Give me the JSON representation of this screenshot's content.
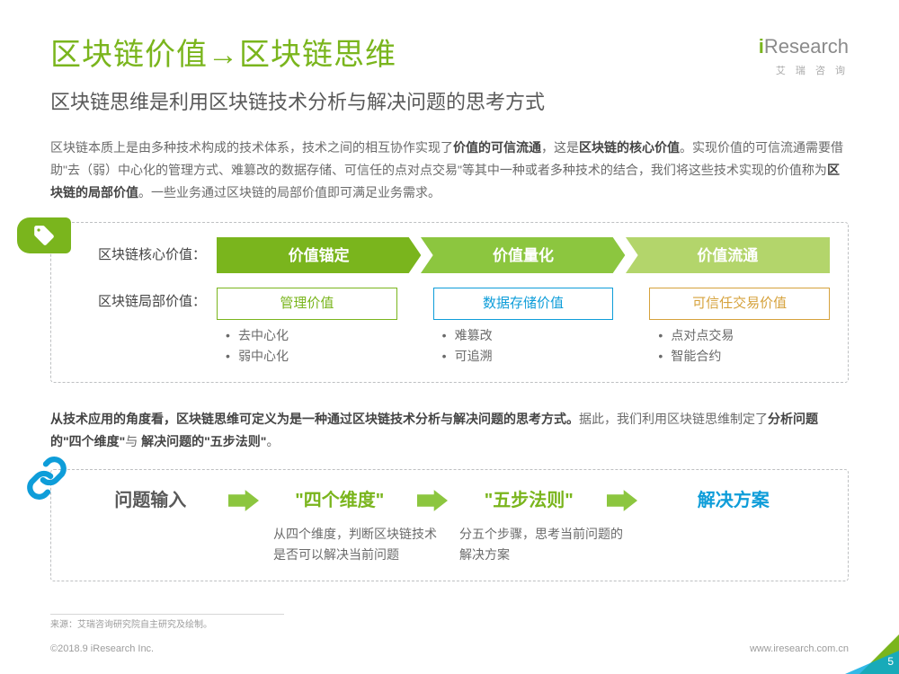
{
  "colors": {
    "green_dark": "#7ab51d",
    "green_mid": "#8cc63f",
    "green_light": "#b3d56b",
    "blue": "#0e9dd9",
    "gold": "#d6a23c",
    "text_gray": "#6a6a6a",
    "border_gray": "#bec0c2"
  },
  "logo": {
    "brand": "Research",
    "prefix": "i",
    "sub": "艾 瑞 咨 询"
  },
  "title": "区块链价值→区块链思维",
  "subtitle": "区块链思维是利用区块链技术分析与解决问题的思考方式",
  "paragraph1_parts": {
    "p1": "区块链本质上是由多种技术构成的技术体系，技术之间的相互协作实现了",
    "b1": "价值的可信流通",
    "p2": "，这是",
    "b2": "区块链的核心价值",
    "p3": "。实现价值的可信流通需要借助\"去（弱）中心化的管理方式、难篡改的数据存储、可信任的点对点交易\"等其中一种或者多种技术的结合，我们将这些技术实现的价值称为",
    "b3": "区块链的局部价值",
    "p4": "。一些业务通过区块链的局部价值即可满足业务需求。"
  },
  "value_section": {
    "core_label": "区块链核心价值：",
    "local_label": "区块链局部价值：",
    "core_steps": [
      {
        "label": "价值锚定",
        "color": "#7ab51d"
      },
      {
        "label": "价值量化",
        "color": "#8cc63f"
      },
      {
        "label": "价值流通",
        "color": "#b3d56b"
      }
    ],
    "local_cols": [
      {
        "head": "管理价值",
        "border": "#7ab51d",
        "text": "#7ab51d",
        "items": [
          "去中心化",
          "弱中心化"
        ]
      },
      {
        "head": "数据存储价值",
        "border": "#0e9dd9",
        "text": "#0e9dd9",
        "items": [
          "难篡改",
          "可追溯"
        ]
      },
      {
        "head": "可信任交易价值",
        "border": "#d6a23c",
        "text": "#d6a23c",
        "items": [
          "点对点交易",
          "智能合约"
        ]
      }
    ]
  },
  "paragraph2_parts": {
    "b1": "从技术应用的角度看，区块链思维可定义为是一种通过区块链技术分析与解决问题的思考方式。",
    "p1": "据此，我们利用区块链思维制定了",
    "b2": "分析问题的\"四个维度\"",
    "p2": "与 ",
    "b3": "解决问题的\"五步法则\"",
    "p3": "。"
  },
  "flow": {
    "steps": [
      {
        "label": "问题输入",
        "color": "#595959"
      },
      {
        "label": "\"四个维度\"",
        "color": "#7ab51d"
      },
      {
        "label": "\"五步法则\"",
        "color": "#7ab51d"
      },
      {
        "label": "解决方案",
        "color": "#0e9dd9"
      }
    ],
    "arrow_color": "#8cc63f",
    "subs": [
      "",
      "从四个维度，判断区块链技术是否可以解决当前问题",
      "分五个步骤，思考当前问题的解决方案",
      ""
    ]
  },
  "source": "来源：艾瑞咨询研究院自主研究及绘制。",
  "footer": {
    "left": "©2018.9 iResearch Inc.",
    "right": "www.iresearch.com.cn"
  },
  "page_num": "5"
}
